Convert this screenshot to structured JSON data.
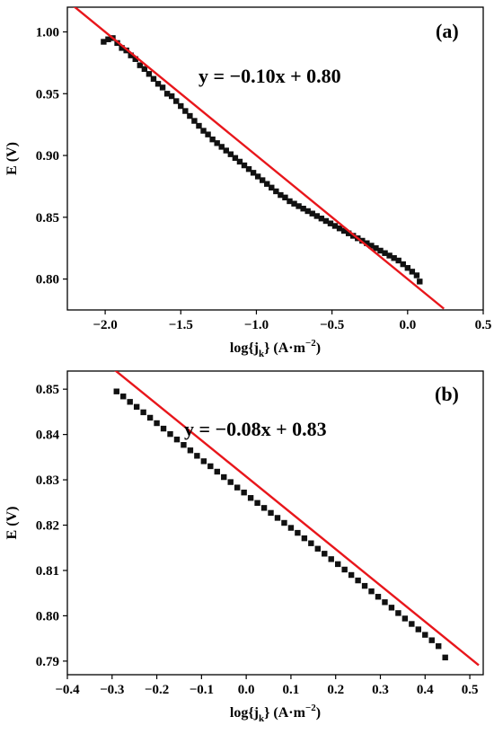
{
  "chart_data": [
    {
      "type": "scatter",
      "panel_label": "(a)",
      "equation": "y = −0.10x + 0.80",
      "xlabel": {
        "main": "log{j",
        "sub": "k",
        "mid": "} (A·m",
        "sup": "−2",
        "end": ")"
      },
      "ylabel": "E (V)",
      "xlim": [
        -2.25,
        0.5
      ],
      "ylim": [
        0.775,
        1.02
      ],
      "xticks": [
        -2.0,
        -1.5,
        -1.0,
        -0.5,
        0.0,
        0.5
      ],
      "xtick_labels": [
        "−2.0",
        "−1.5",
        "−1.0",
        "−0.5",
        "0.0",
        "0.5"
      ],
      "yticks": [
        0.8,
        0.85,
        0.9,
        0.95,
        1.0
      ],
      "ytick_labels": [
        "0.80",
        "0.85",
        "0.90",
        "0.95",
        "1.00"
      ],
      "fit": {
        "slope": -0.1,
        "intercept": 0.8,
        "x_range": [
          -2.25,
          0.24
        ]
      },
      "x": [
        -2.01,
        -1.98,
        -1.95,
        -1.92,
        -1.89,
        -1.86,
        -1.83,
        -1.8,
        -1.77,
        -1.74,
        -1.71,
        -1.68,
        -1.65,
        -1.62,
        -1.59,
        -1.56,
        -1.53,
        -1.5,
        -1.47,
        -1.44,
        -1.41,
        -1.38,
        -1.35,
        -1.32,
        -1.29,
        -1.26,
        -1.23,
        -1.2,
        -1.17,
        -1.14,
        -1.11,
        -1.08,
        -1.05,
        -1.02,
        -0.99,
        -0.96,
        -0.93,
        -0.9,
        -0.87,
        -0.84,
        -0.81,
        -0.78,
        -0.75,
        -0.72,
        -0.69,
        -0.66,
        -0.63,
        -0.6,
        -0.57,
        -0.54,
        -0.51,
        -0.48,
        -0.45,
        -0.42,
        -0.39,
        -0.36,
        -0.33,
        -0.3,
        -0.27,
        -0.24,
        -0.21,
        -0.18,
        -0.15,
        -0.12,
        -0.09,
        -0.06,
        -0.03,
        0.0,
        0.03,
        0.06,
        0.08
      ],
      "y": [
        0.992,
        0.994,
        0.995,
        0.991,
        0.987,
        0.985,
        0.981,
        0.978,
        0.973,
        0.97,
        0.966,
        0.962,
        0.958,
        0.955,
        0.95,
        0.948,
        0.944,
        0.94,
        0.936,
        0.932,
        0.928,
        0.924,
        0.92,
        0.917,
        0.913,
        0.91,
        0.907,
        0.904,
        0.901,
        0.898,
        0.895,
        0.892,
        0.889,
        0.886,
        0.883,
        0.88,
        0.877,
        0.874,
        0.871,
        0.868,
        0.866,
        0.863,
        0.861,
        0.859,
        0.857,
        0.855,
        0.853,
        0.851,
        0.849,
        0.847,
        0.845,
        0.843,
        0.841,
        0.839,
        0.837,
        0.835,
        0.833,
        0.831,
        0.829,
        0.827,
        0.825,
        0.823,
        0.821,
        0.819,
        0.817,
        0.815,
        0.812,
        0.809,
        0.806,
        0.803,
        0.798
      ]
    },
    {
      "type": "scatter",
      "panel_label": "(b)",
      "equation": "y = −0.08x + 0.83",
      "xlabel": {
        "main": "log{j",
        "sub": "k",
        "mid": "} (A·m",
        "sup": "−2",
        "end": ")"
      },
      "ylabel": "E (V)",
      "xlim": [
        -0.4,
        0.53
      ],
      "ylim": [
        0.787,
        0.854
      ],
      "xticks": [
        -0.4,
        -0.3,
        -0.2,
        -0.1,
        0.0,
        0.1,
        0.2,
        0.3,
        0.4,
        0.5
      ],
      "xtick_labels": [
        "−0.4",
        "−0.3",
        "−0.2",
        "−0.1",
        "0.0",
        "0.1",
        "0.2",
        "0.3",
        "0.4",
        "0.5"
      ],
      "yticks": [
        0.79,
        0.8,
        0.81,
        0.82,
        0.83,
        0.84,
        0.85
      ],
      "ytick_labels": [
        "0.79",
        "0.80",
        "0.81",
        "0.82",
        "0.83",
        "0.84",
        "0.85"
      ],
      "fit": {
        "slope": -0.08,
        "intercept": 0.8307,
        "x_range": [
          -0.345,
          0.52
        ]
      },
      "x": [
        -0.29,
        -0.275,
        -0.26,
        -0.245,
        -0.23,
        -0.215,
        -0.2,
        -0.185,
        -0.17,
        -0.155,
        -0.14,
        -0.125,
        -0.11,
        -0.095,
        -0.08,
        -0.065,
        -0.05,
        -0.035,
        -0.02,
        -0.005,
        0.01,
        0.025,
        0.04,
        0.055,
        0.07,
        0.085,
        0.1,
        0.115,
        0.13,
        0.145,
        0.16,
        0.175,
        0.19,
        0.205,
        0.22,
        0.235,
        0.25,
        0.265,
        0.28,
        0.295,
        0.31,
        0.325,
        0.34,
        0.355,
        0.37,
        0.385,
        0.4,
        0.415,
        0.43,
        0.445
      ],
      "y": [
        0.8495,
        0.8484,
        0.8472,
        0.8461,
        0.8449,
        0.8437,
        0.8425,
        0.8413,
        0.8401,
        0.8389,
        0.8377,
        0.8365,
        0.8353,
        0.8341,
        0.833,
        0.8318,
        0.8306,
        0.8295,
        0.8283,
        0.8272,
        0.826,
        0.8249,
        0.8238,
        0.8227,
        0.8216,
        0.8205,
        0.8194,
        0.8183,
        0.8171,
        0.816,
        0.8148,
        0.8137,
        0.8125,
        0.8114,
        0.8102,
        0.809,
        0.8078,
        0.8066,
        0.8054,
        0.8042,
        0.803,
        0.8018,
        0.8006,
        0.7994,
        0.7982,
        0.797,
        0.7958,
        0.7946,
        0.7933,
        0.7908
      ]
    }
  ]
}
